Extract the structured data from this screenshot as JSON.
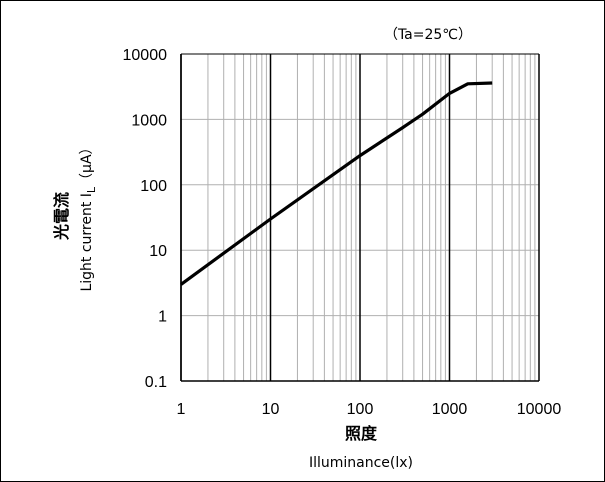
{
  "chart_data": {
    "type": "line",
    "condition": "（Ta=25℃）",
    "xlabel": "照度",
    "xlabel_sub": "Illuminance(lx)",
    "ylabel": "光電流",
    "ylabel_sub": "Light current I",
    "ylabel_sub_subscript": "L",
    "ylabel_sub_unit": "（μA）",
    "x_scale": "log",
    "y_scale": "log",
    "xlim": [
      1,
      10000
    ],
    "ylim": [
      0.1,
      10000
    ],
    "x_ticks": [
      "1",
      "10",
      "100",
      "1000",
      "10000"
    ],
    "y_ticks": [
      "0.1",
      "1",
      "10",
      "100",
      "1000",
      "10000"
    ],
    "grid": true,
    "series": [
      {
        "x": [
          1,
          10,
          100,
          300,
          500,
          1000,
          1600,
          3000
        ],
        "y": [
          3,
          30,
          280,
          750,
          1200,
          2500,
          3500,
          3600
        ]
      }
    ],
    "colors": {
      "line": "#000000",
      "major_grid": "#000000",
      "minor_grid": "#b0b0b0"
    }
  }
}
